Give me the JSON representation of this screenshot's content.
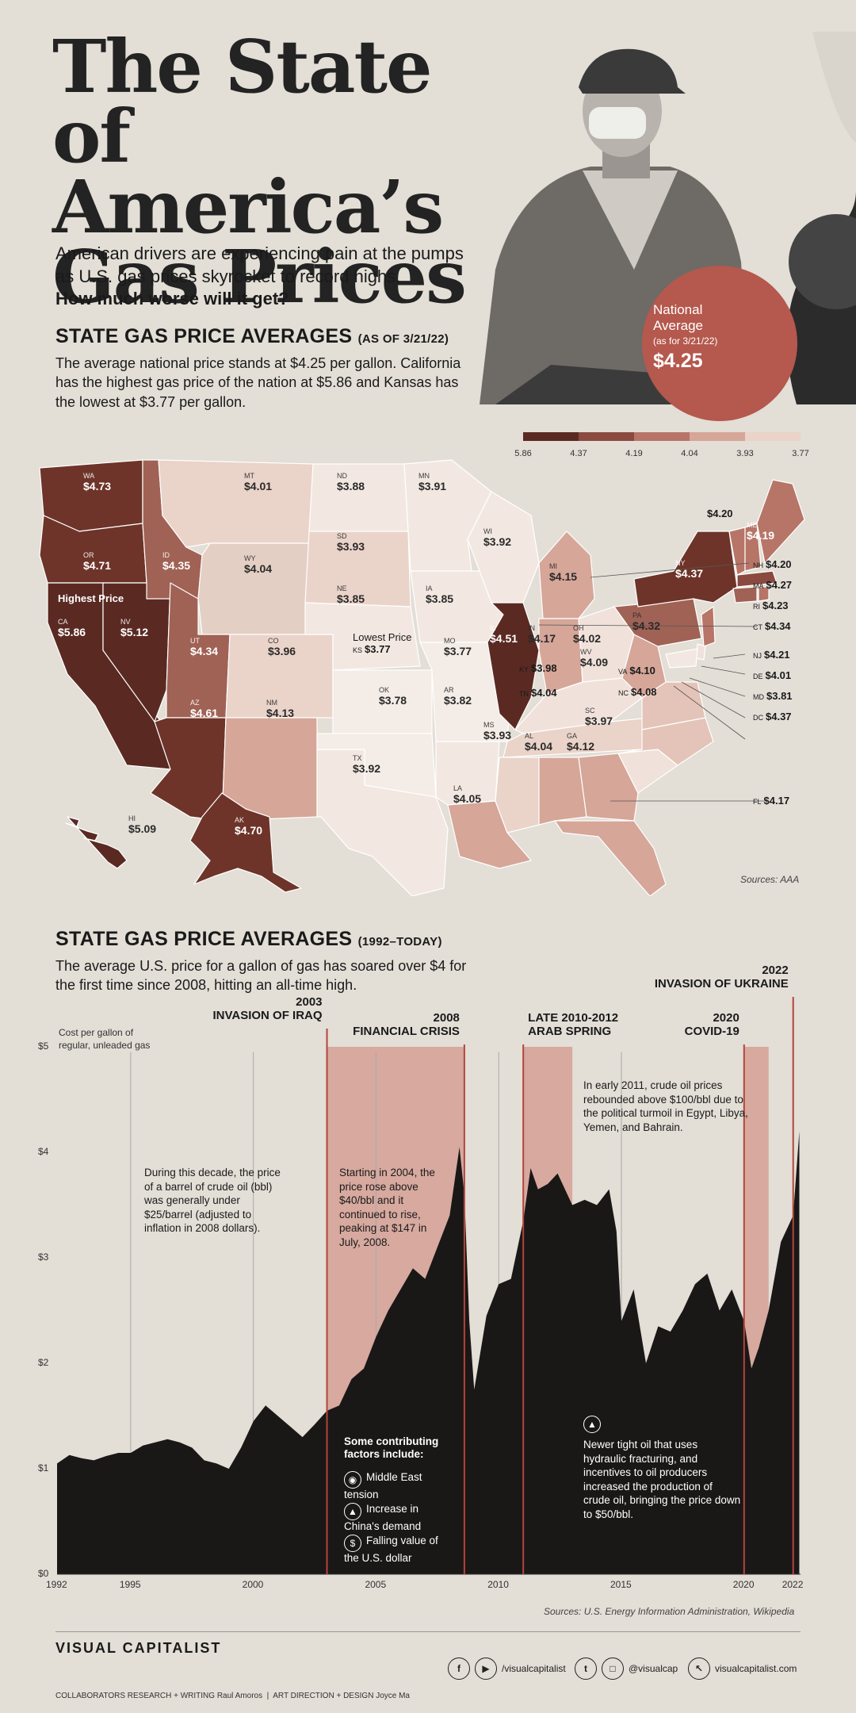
{
  "header": {
    "title_lines": [
      "The State of",
      "America’s",
      "Gas Prices"
    ],
    "intro": "American drivers are experiencing pain at the pumps as U.S. gas prices skyrocket to record highs.",
    "intro_question": "How much worse will it get?"
  },
  "national_average": {
    "label_line1": "National",
    "label_line2": "Average",
    "date": "(as for 3/21/22)",
    "value": "$4.25"
  },
  "map_section": {
    "title": "STATE GAS PRICE AVERAGES",
    "title_note": "(AS OF 3/21/22)",
    "description": "The average national price stands at $4.25 per gallon. California has the highest gas price of the nation at $5.86 and Kansas has the lowest at $3.77 per gallon.",
    "highest_label": "Highest Price",
    "lowest_label": "Lowest Price",
    "sources": "Sources: AAA"
  },
  "legend": {
    "stops": [
      "5.86",
      "4.37",
      "4.19",
      "4.04",
      "3.93",
      "3.77"
    ],
    "colors": [
      "#5a2a22",
      "#8a4a3f",
      "#b77567",
      "#d6a698",
      "#ead3c9",
      "#f4ece6"
    ]
  },
  "chart_data": [
    {
      "type": "choropleth",
      "title": "STATE GAS PRICE AVERAGES (AS OF 3/21/22)",
      "unit": "$ per gallon",
      "states": [
        {
          "abbr": "WA",
          "value": "$4.73"
        },
        {
          "abbr": "OR",
          "value": "$4.71"
        },
        {
          "abbr": "CA",
          "value": "$5.86"
        },
        {
          "abbr": "NV",
          "value": "$5.12"
        },
        {
          "abbr": "ID",
          "value": "$4.35"
        },
        {
          "abbr": "MT",
          "value": "$4.01"
        },
        {
          "abbr": "WY",
          "value": "$4.04"
        },
        {
          "abbr": "UT",
          "value": "$4.34"
        },
        {
          "abbr": "CO",
          "value": "$3.96"
        },
        {
          "abbr": "AZ",
          "value": "$4.61"
        },
        {
          "abbr": "NM",
          "value": "$4.13"
        },
        {
          "abbr": "ND",
          "value": "$3.88"
        },
        {
          "abbr": "SD",
          "value": "$3.93"
        },
        {
          "abbr": "NE",
          "value": "$3.85"
        },
        {
          "abbr": "KS",
          "value": "$3.77"
        },
        {
          "abbr": "OK",
          "value": "$3.78"
        },
        {
          "abbr": "TX",
          "value": "$3.92"
        },
        {
          "abbr": "MN",
          "value": "$3.91"
        },
        {
          "abbr": "IA",
          "value": "$3.85"
        },
        {
          "abbr": "MO",
          "value": "$3.77"
        },
        {
          "abbr": "AR",
          "value": "$3.82"
        },
        {
          "abbr": "LA",
          "value": "$4.05"
        },
        {
          "abbr": "WI",
          "value": "$3.92"
        },
        {
          "abbr": "IL",
          "value": "$4.51"
        },
        {
          "abbr": "MI",
          "value": "$4.15"
        },
        {
          "abbr": "IN",
          "value": "$4.17"
        },
        {
          "abbr": "OH",
          "value": "$4.02"
        },
        {
          "abbr": "KY",
          "value": "$3.98"
        },
        {
          "abbr": "TN",
          "value": "$4.04"
        },
        {
          "abbr": "MS",
          "value": "$3.93"
        },
        {
          "abbr": "AL",
          "value": "$4.04"
        },
        {
          "abbr": "GA",
          "value": "$4.12"
        },
        {
          "abbr": "FL",
          "value": "$4.17"
        },
        {
          "abbr": "SC",
          "value": "$3.97"
        },
        {
          "abbr": "NC",
          "value": "$4.08"
        },
        {
          "abbr": "VA",
          "value": "$4.10"
        },
        {
          "abbr": "WV",
          "value": "$4.09"
        },
        {
          "abbr": "PA",
          "value": "$4.32"
        },
        {
          "abbr": "NY",
          "value": "$4.37"
        },
        {
          "abbr": "VT",
          "value": "$4.20"
        },
        {
          "abbr": "NH",
          "value": "$4.20"
        },
        {
          "abbr": "ME",
          "value": "$4.19"
        },
        {
          "abbr": "MA",
          "value": "$4.27"
        },
        {
          "abbr": "RI",
          "value": "$4.23"
        },
        {
          "abbr": "CT",
          "value": "$4.34"
        },
        {
          "abbr": "NJ",
          "value": "$4.21"
        },
        {
          "abbr": "DE",
          "value": "$4.01"
        },
        {
          "abbr": "MD",
          "value": "$3.81"
        },
        {
          "abbr": "DC",
          "value": "$4.37"
        },
        {
          "abbr": "HI",
          "value": "$5.09"
        },
        {
          "abbr": "AK",
          "value": "$4.70"
        }
      ]
    },
    {
      "type": "area",
      "title": "STATE GAS PRICE AVERAGES (1992–TODAY)",
      "ylabel": "Cost per gallon of regular, unleaded gas",
      "ylim": [
        0,
        5
      ],
      "yticks": [
        "$0",
        "$1",
        "$2",
        "$3",
        "$4",
        "$5"
      ],
      "xlim": [
        1992,
        2022.3
      ],
      "xticks": [
        "1992",
        "1995",
        "2000",
        "2005",
        "2010",
        "2015",
        "2020",
        "2022"
      ],
      "x": [
        1992,
        1992.5,
        1993,
        1993.5,
        1994,
        1994.5,
        1995,
        1995.5,
        1996,
        1996.5,
        1997,
        1997.5,
        1998,
        1998.5,
        1999,
        1999.5,
        2000,
        2000.5,
        2001,
        2001.5,
        2002,
        2002.5,
        2003,
        2003.5,
        2004,
        2004.5,
        2005,
        2005.5,
        2006,
        2006.5,
        2007,
        2007.5,
        2008,
        2008.4,
        2008.6,
        2008.8,
        2009,
        2009.5,
        2010,
        2010.5,
        2011,
        2011.3,
        2011.6,
        2012,
        2012.4,
        2012.8,
        2013,
        2013.5,
        2014,
        2014.5,
        2014.8,
        2015,
        2015.5,
        2016,
        2016.5,
        2017,
        2017.5,
        2018,
        2018.5,
        2019,
        2019.5,
        2020,
        2020.3,
        2020.6,
        2021,
        2021.5,
        2022,
        2022.25
      ],
      "values": [
        1.05,
        1.13,
        1.1,
        1.08,
        1.12,
        1.15,
        1.15,
        1.22,
        1.25,
        1.28,
        1.25,
        1.2,
        1.08,
        1.05,
        1.0,
        1.2,
        1.45,
        1.6,
        1.5,
        1.4,
        1.3,
        1.42,
        1.55,
        1.6,
        1.85,
        1.95,
        2.25,
        2.5,
        2.7,
        2.9,
        2.8,
        3.1,
        3.4,
        4.05,
        3.6,
        2.4,
        1.75,
        2.45,
        2.75,
        2.8,
        3.35,
        3.85,
        3.65,
        3.7,
        3.8,
        3.6,
        3.5,
        3.55,
        3.5,
        3.65,
        3.25,
        2.4,
        2.7,
        2.0,
        2.35,
        2.3,
        2.5,
        2.75,
        2.85,
        2.5,
        2.7,
        2.4,
        1.95,
        2.15,
        2.5,
        3.15,
        3.4,
        4.2
      ],
      "events": [
        {
          "label_line1": "2003",
          "label_line2": "INVASION OF IRAQ",
          "x": 2003
        },
        {
          "label_line1": "2008",
          "label_line2": "FINANCIAL CRISIS",
          "x": 2008.6
        },
        {
          "label_line1": "LATE 2010-2012",
          "label_line2": "ARAB SPRING",
          "x": 2011
        },
        {
          "label_line1": "2020",
          "label_line2": "COVID-19",
          "x": 2020
        },
        {
          "label_line1": "2022",
          "label_line2": "INVASION OF UKRAINE",
          "x": 2022
        }
      ],
      "highlight_ranges": [
        [
          2003,
          2008.6
        ],
        [
          2011,
          2013
        ],
        [
          2020,
          2021
        ]
      ]
    }
  ],
  "history_section": {
    "title": "STATE GAS PRICE AVERAGES",
    "title_note": "(1992–TODAY)",
    "description": "The average U.S. price for a gallon of gas has soared over $4 for the first time since 2008, hitting an all-time high.",
    "ylabel_line1": "Cost per gallon of",
    "ylabel_line2": "regular, unleaded gas",
    "note_1990s": "During this decade, the price of a barrel of crude oil (bbl) was generally under $25/barrel (adjusted to inflation in 2008 dollars).",
    "note_2004": "Starting in 2004, the price rose above $40/bbl and it continued to rise, peaking at $147 in July, 2008.",
    "note_2011": "In early 2011, crude oil prices rebounded above $100/bbl due to the political turmoil in Egypt, Libya, Yemen, and Bahrain.",
    "note_fracking": "Newer tight oil that uses hydraulic fracturing, and incentives to oil producers increased the production of crude oil, bringing the price down to $50/bbl.",
    "factors_title": "Some contributing factors include:",
    "factors": [
      "Middle East tension",
      "Increase in China's demand",
      "Falling value of the U.S. dollar"
    ],
    "sources": "Sources: U.S. Energy Information Administration, Wikipedia"
  },
  "footer": {
    "logo": "VISUAL CAPITALIST",
    "facebook_youtube": "/visualcapitalist",
    "twitter_instagram": "@visualcap",
    "website": "visualcapitalist.com",
    "credits_left": "COLLABORATORS  RESEARCH + WRITING  Raul Amoros",
    "credits_right": "ART DIRECTION + DESIGN  Joyce Ma"
  }
}
